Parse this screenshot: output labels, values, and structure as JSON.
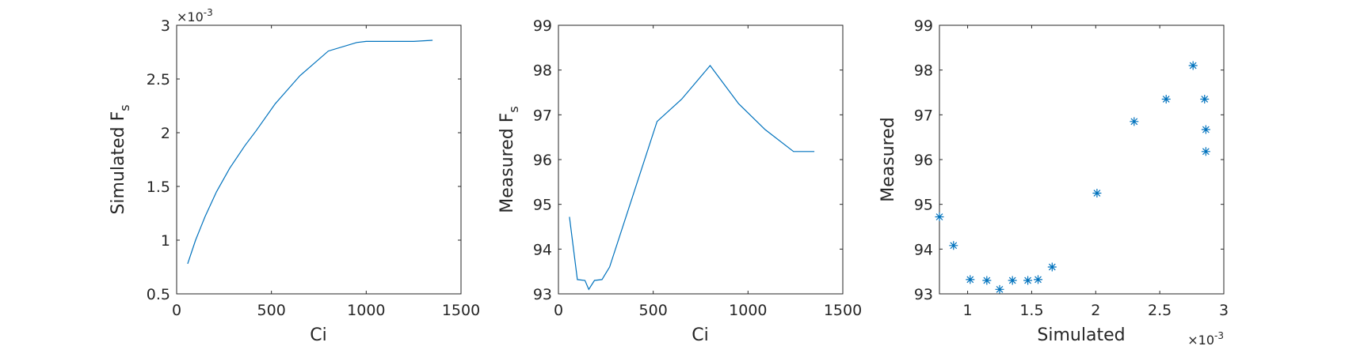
{
  "chart_data": [
    {
      "type": "line",
      "xlabel": "Ci",
      "ylabel": "Simulated F",
      "ylabel_sub": "s",
      "xlim": [
        0,
        1500
      ],
      "ylim": [
        0.5,
        3
      ],
      "xticks": [
        0,
        500,
        1000,
        1500
      ],
      "yticks": [
        0.5,
        1,
        1.5,
        2,
        2.5,
        3
      ],
      "xtick_labels": [
        "0",
        "500",
        "1000",
        "1500"
      ],
      "ytick_labels": [
        "0.5",
        "1",
        "1.5",
        "2",
        "2.5",
        "3"
      ],
      "y_exponent": "×10",
      "y_exponent_power": "-3",
      "color": "#0072bd",
      "series": [
        {
          "x": [
            58,
            100,
            150,
            210,
            280,
            360,
            420,
            520,
            650,
            800,
            950,
            1000,
            1100,
            1250,
            1350
          ],
          "y": [
            0.78,
            1.0,
            1.22,
            1.45,
            1.67,
            1.88,
            2.02,
            2.27,
            2.53,
            2.76,
            2.84,
            2.85,
            2.85,
            2.85,
            2.86
          ]
        }
      ]
    },
    {
      "type": "line",
      "xlabel": "Ci",
      "ylabel": "Measured F",
      "ylabel_sub": "s",
      "xlim": [
        0,
        1500
      ],
      "ylim": [
        93,
        99
      ],
      "xticks": [
        0,
        500,
        1000,
        1500
      ],
      "yticks": [
        93,
        94,
        95,
        96,
        97,
        98,
        99
      ],
      "xtick_labels": [
        "0",
        "500",
        "1000",
        "1500"
      ],
      "ytick_labels": [
        "93",
        "94",
        "95",
        "96",
        "97",
        "98",
        "99"
      ],
      "color": "#0072bd",
      "series": [
        {
          "x": [
            58,
            100,
            140,
            160,
            190,
            230,
            270,
            520,
            650,
            800,
            950,
            1090,
            1240,
            1350
          ],
          "y": [
            94.72,
            93.32,
            93.3,
            93.1,
            93.3,
            93.32,
            93.6,
            96.85,
            97.35,
            98.1,
            97.25,
            96.67,
            96.18,
            96.18
          ]
        }
      ]
    },
    {
      "type": "scatter",
      "xlabel": "Simulated",
      "ylabel": "Measured",
      "xlim": [
        0.78,
        3
      ],
      "ylim": [
        93,
        99
      ],
      "xticks": [
        1,
        1.5,
        2,
        2.5,
        3
      ],
      "yticks": [
        93,
        94,
        95,
        96,
        97,
        98,
        99
      ],
      "xtick_labels": [
        "1",
        "1.5",
        "2",
        "2.5",
        "3"
      ],
      "ytick_labels": [
        "93",
        "94",
        "95",
        "96",
        "97",
        "98",
        "99"
      ],
      "x_exponent": "×10",
      "x_exponent_power": "-3",
      "marker": "*",
      "color": "#0072bd",
      "series": [
        {
          "x": [
            0.78,
            0.89,
            1.02,
            1.15,
            1.25,
            1.35,
            1.47,
            1.55,
            1.66,
            2.01,
            2.3,
            2.55,
            2.76,
            2.85,
            2.86,
            2.86
          ],
          "y": [
            94.72,
            94.08,
            93.32,
            93.3,
            93.1,
            93.3,
            93.3,
            93.32,
            93.6,
            95.25,
            96.85,
            97.35,
            98.1,
            97.35,
            96.67,
            96.18
          ]
        }
      ]
    }
  ]
}
